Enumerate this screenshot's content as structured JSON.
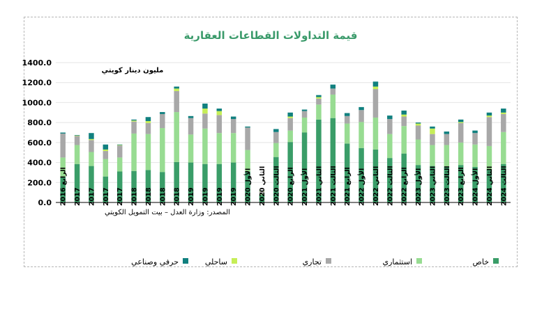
{
  "chart_data": {
    "type": "bar",
    "stacked": true,
    "title": "قيمة التداولات القطاعات العقارية",
    "unit_label": "مليون دينار كويتي",
    "source_note": "المصدر: وزارة العدل – بيت التمويل الكويتي",
    "ylim": [
      0,
      1400
    ],
    "yticks": [
      "0.0",
      "200.0",
      "400.0",
      "600.0",
      "800.0",
      "1000.0",
      "1200.0",
      "1400.0"
    ],
    "grid": true,
    "legend_position": "bottom",
    "categories": [
      "الرابع 2016",
      "2017",
      "2017",
      "2017",
      "2017",
      "2018",
      "2018",
      "2018",
      "2018",
      "2019",
      "2019",
      "2019",
      "2019",
      "الأول 2020",
      "الثاني 2020",
      "الثالث 2020",
      "الرابع 2020",
      "الأول 2021",
      "الثاني 2021",
      "الثالث 2021",
      "الرابع 2021",
      "الأول 2022",
      "الثاني 2022",
      "الثالث 2022",
      "الرابع 2022",
      "الأول 2023",
      "الثاني 2023",
      "الثالث 2023",
      "الرابع 2023",
      "الأول 2024",
      "الثاني 2024",
      "الثالث 2024"
    ],
    "series": [
      {
        "name": "خاص",
        "color": "#3a9d68",
        "values": [
          255,
          385,
          365,
          260,
          310,
          315,
          325,
          305,
          405,
          400,
          385,
          385,
          400,
          310,
          75,
          455,
          605,
          700,
          830,
          845,
          590,
          545,
          530,
          445,
          490,
          375,
          365,
          360,
          375,
          355,
          335,
          385
        ]
      },
      {
        "name": "استثماري",
        "color": "#98dc92",
        "values": [
          195,
          190,
          140,
          175,
          140,
          375,
          360,
          440,
          500,
          280,
          355,
          310,
          295,
          215,
          15,
          140,
          115,
          150,
          150,
          235,
          200,
          260,
          320,
          240,
          275,
          255,
          210,
          215,
          225,
          225,
          230,
          320
        ]
      },
      {
        "name": "تجاري",
        "color": "#a8a8a8",
        "values": [
          240,
          90,
          120,
          80,
          120,
          120,
          110,
          140,
          210,
          165,
          150,
          180,
          140,
          225,
          20,
          110,
          125,
          65,
          60,
          60,
          75,
          120,
          285,
          150,
          95,
          140,
          110,
          110,
          195,
          115,
          290,
          180
        ]
      },
      {
        "name": "ساحلي",
        "color": "#c6ee57",
        "values": [
          0,
          5,
          10,
          15,
          5,
          10,
          20,
          0,
          25,
          0,
          50,
          40,
          0,
          0,
          5,
          0,
          15,
          0,
          15,
          0,
          0,
          0,
          25,
          0,
          20,
          20,
          55,
          0,
          10,
          0,
          15,
          15
        ]
      },
      {
        "name": "حرفي وصناعي",
        "color": "#11807f",
        "values": [
          10,
          5,
          60,
          50,
          5,
          10,
          40,
          20,
          20,
          20,
          50,
          25,
          25,
          10,
          5,
          30,
          40,
          15,
          20,
          40,
          30,
          30,
          50,
          35,
          40,
          10,
          20,
          25,
          25,
          25,
          30,
          40
        ]
      }
    ]
  }
}
